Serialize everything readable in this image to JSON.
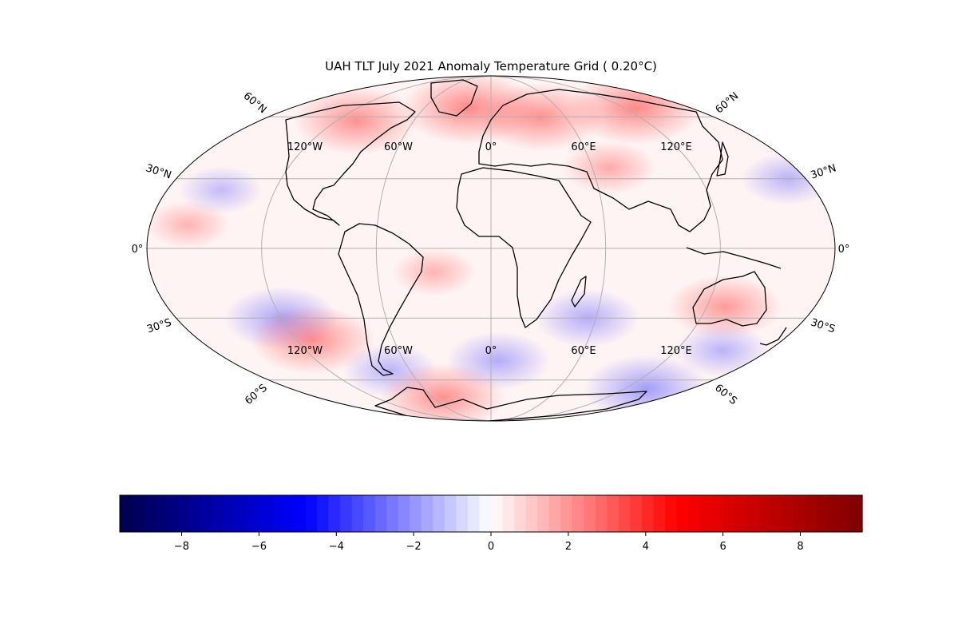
{
  "title": "UAH TLT July 2021 Anomaly Temperature Grid ( 0.20°C)",
  "map": {
    "projection": "Mollweide",
    "central_longitude": 0,
    "lat_labels_left": [
      "60°N",
      "30°N",
      "0°",
      "30°S",
      "60°S"
    ],
    "lat_labels_right": [
      "60°N",
      "30°N",
      "0°",
      "30°S",
      "60°S"
    ],
    "lon_labels_north": [
      "120°W",
      "60°W",
      "0°",
      "60°E",
      "120°E"
    ],
    "lon_labels_south": [
      "120°W",
      "60°W",
      "0°",
      "60°E",
      "120°E"
    ],
    "colors": {
      "gridline": "#b0b0b0",
      "border": "#000000",
      "land_outline": "#000000"
    }
  },
  "chart_data": {
    "type": "heatmap",
    "variable": "TLT temperature anomaly (°C)",
    "global_mean": 0.2,
    "anomaly_regions": [
      {
        "lon": -105,
        "lat": 58,
        "value": 3.0
      },
      {
        "lon": -20,
        "lat": 65,
        "value": 3.5
      },
      {
        "lon": 40,
        "lat": 60,
        "value": 3.0
      },
      {
        "lon": 130,
        "lat": 65,
        "value": 3.5
      },
      {
        "lon": -120,
        "lat": -30,
        "value": -2.5
      },
      {
        "lon": -110,
        "lat": -40,
        "value": 3.0
      },
      {
        "lon": -75,
        "lat": -55,
        "value": -1.5
      },
      {
        "lon": 5,
        "lat": -50,
        "value": -2.0
      },
      {
        "lon": 55,
        "lat": -30,
        "value": -2.0
      },
      {
        "lon": 130,
        "lat": -25,
        "value": 2.5
      },
      {
        "lon": 150,
        "lat": -45,
        "value": -1.5
      },
      {
        "lon": 140,
        "lat": -65,
        "value": -3.0
      },
      {
        "lon": -50,
        "lat": -70,
        "value": 3.0
      },
      {
        "lon": 170,
        "lat": 30,
        "value": -1.5
      },
      {
        "lon": -150,
        "lat": 25,
        "value": -1.0
      },
      {
        "lon": -160,
        "lat": 10,
        "value": 1.0
      },
      {
        "lon": 70,
        "lat": 35,
        "value": 1.5
      },
      {
        "lon": -30,
        "lat": -10,
        "value": 1.0
      }
    ]
  },
  "colorbar": {
    "colormap": "seismic",
    "min": -9.6,
    "max": 9.6,
    "tick_values": [
      -8,
      -6,
      -4,
      -2,
      0,
      2,
      4,
      6,
      8
    ],
    "tick_labels": [
      "−8",
      "−6",
      "−4",
      "−2",
      "0",
      "2",
      "4",
      "6",
      "8"
    ],
    "stops": [
      "#00004c",
      "#0000ff",
      "#ffffff",
      "#ff0000",
      "#7f0000"
    ]
  }
}
